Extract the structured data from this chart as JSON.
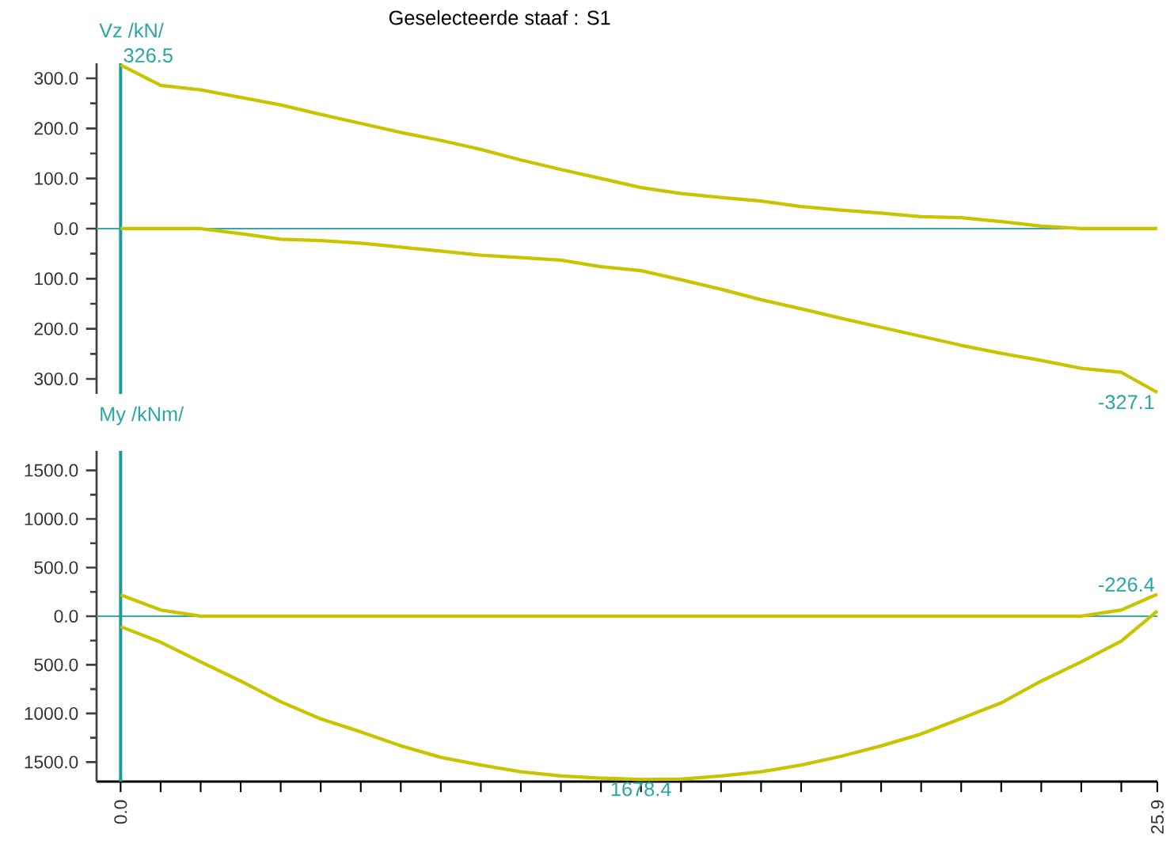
{
  "chart_data": [
    {
      "type": "line",
      "title": "Geselecteerde staaf :  S1",
      "ylabel": "Vz /kN/",
      "x": [
        0,
        1,
        2,
        3,
        4,
        5,
        6,
        7,
        8,
        9,
        10,
        11,
        12,
        13,
        14,
        15,
        16,
        17,
        18,
        19,
        20,
        21,
        22,
        23,
        24,
        25,
        25.9
      ],
      "series": [
        {
          "color": "#c8c400",
          "values": [
            326.5,
            286,
            277,
            262,
            247,
            228,
            210,
            192,
            176,
            158,
            137,
            118,
            100,
            82,
            70,
            62,
            55,
            44,
            37,
            31,
            24,
            22,
            14,
            5,
            0,
            0,
            0
          ]
        },
        {
          "color": "#c8c400",
          "values": [
            0,
            0,
            0,
            -10,
            -21,
            -24,
            -29,
            -37,
            -45,
            -53,
            -58,
            -63,
            -76,
            -84,
            -102,
            -121,
            -142,
            -160,
            -179,
            -197,
            -215,
            -233,
            -249,
            -263,
            -279,
            -287,
            -327.1
          ]
        }
      ],
      "xlim": [
        -0.6,
        25.9
      ],
      "ylim": [
        -330,
        330
      ],
      "yticks": [
        {
          "value": -300,
          "label": "300.0"
        },
        {
          "value": -200,
          "label": "200.0"
        },
        {
          "value": -100,
          "label": "100.0"
        },
        {
          "value": 0,
          "label": "0.0"
        },
        {
          "value": 100,
          "label": "100.0"
        },
        {
          "value": 200,
          "label": "200.0"
        },
        {
          "value": 300,
          "label": "300.0"
        }
      ],
      "tick_labels": "y",
      "ref_lines": [
        {
          "axis": "y",
          "value": 0,
          "color": "#3aa8a8"
        },
        {
          "axis": "x",
          "value": 0,
          "color": "#1f9a9a"
        }
      ],
      "annotations": [
        {
          "text": "326.5",
          "x": 0,
          "y": 326.5
        },
        {
          "text": "-327.1",
          "x": 25.9,
          "y": -327.1
        }
      ]
    },
    {
      "type": "line",
      "ylabel": "My /kNm/",
      "x": [
        0,
        1,
        2,
        3,
        4,
        5,
        6,
        7,
        8,
        9,
        10,
        11,
        12,
        13,
        14,
        15,
        16,
        17,
        18,
        19,
        20,
        21,
        22,
        23,
        24,
        25,
        25.9
      ],
      "series": [
        {
          "color": "#c8c400",
          "values": [
            -220,
            -64,
            0,
            0,
            0,
            0,
            0,
            0,
            0,
            0,
            0,
            0,
            0,
            0,
            0,
            0,
            0,
            0,
            0,
            0,
            0,
            0,
            0,
            0,
            0,
            -64,
            -226.4
          ]
        },
        {
          "color": "#c8c400",
          "values": [
            107,
            267,
            469,
            667,
            880,
            1056,
            1189,
            1333,
            1451,
            1531,
            1600,
            1643,
            1664,
            1678.4,
            1675,
            1643,
            1600,
            1531,
            1440,
            1333,
            1211,
            1051,
            891,
            667,
            469,
            256,
            -53
          ]
        }
      ],
      "xlim": [
        -0.6,
        25.9
      ],
      "ylim": [
        1700,
        -1700
      ],
      "yticks": [
        {
          "value": -1500,
          "label": "1500.0"
        },
        {
          "value": -1000,
          "label": "1000.0"
        },
        {
          "value": -500,
          "label": "500.0"
        },
        {
          "value": 0,
          "label": "0.0"
        },
        {
          "value": 500,
          "label": "500.0"
        },
        {
          "value": 1000,
          "label": "1000.0"
        },
        {
          "value": 1500,
          "label": "1500.0"
        }
      ],
      "xticks": [
        {
          "value": 0,
          "label": "0.0"
        },
        {
          "value": 1,
          "label": null
        },
        {
          "value": 2,
          "label": null
        },
        {
          "value": 3,
          "label": null
        },
        {
          "value": 4,
          "label": null
        },
        {
          "value": 5,
          "label": null
        },
        {
          "value": 6,
          "label": null
        },
        {
          "value": 7,
          "label": null
        },
        {
          "value": 8,
          "label": null
        },
        {
          "value": 9,
          "label": null
        },
        {
          "value": 10,
          "label": null
        },
        {
          "value": 11,
          "label": null
        },
        {
          "value": 12,
          "label": null
        },
        {
          "value": 13,
          "label": null
        },
        {
          "value": 14,
          "label": null
        },
        {
          "value": 15,
          "label": null
        },
        {
          "value": 16,
          "label": null
        },
        {
          "value": 17,
          "label": null
        },
        {
          "value": 18,
          "label": null
        },
        {
          "value": 19,
          "label": null
        },
        {
          "value": 20,
          "label": null
        },
        {
          "value": 21,
          "label": null
        },
        {
          "value": 22,
          "label": null
        },
        {
          "value": 23,
          "label": null
        },
        {
          "value": 24,
          "label": null
        },
        {
          "value": 25,
          "label": null
        },
        {
          "value": 25.9,
          "label": "25.9"
        }
      ],
      "ref_lines": [
        {
          "axis": "y",
          "value": 0,
          "color": "#3aa8a8"
        },
        {
          "axis": "x",
          "value": 0,
          "color": "#1f9a9a"
        }
      ],
      "annotations": [
        {
          "text": "-226.4",
          "x": 25.9,
          "y": -226.4
        },
        {
          "text": "1678.4",
          "x": 13,
          "y": 1678.4
        }
      ]
    }
  ]
}
